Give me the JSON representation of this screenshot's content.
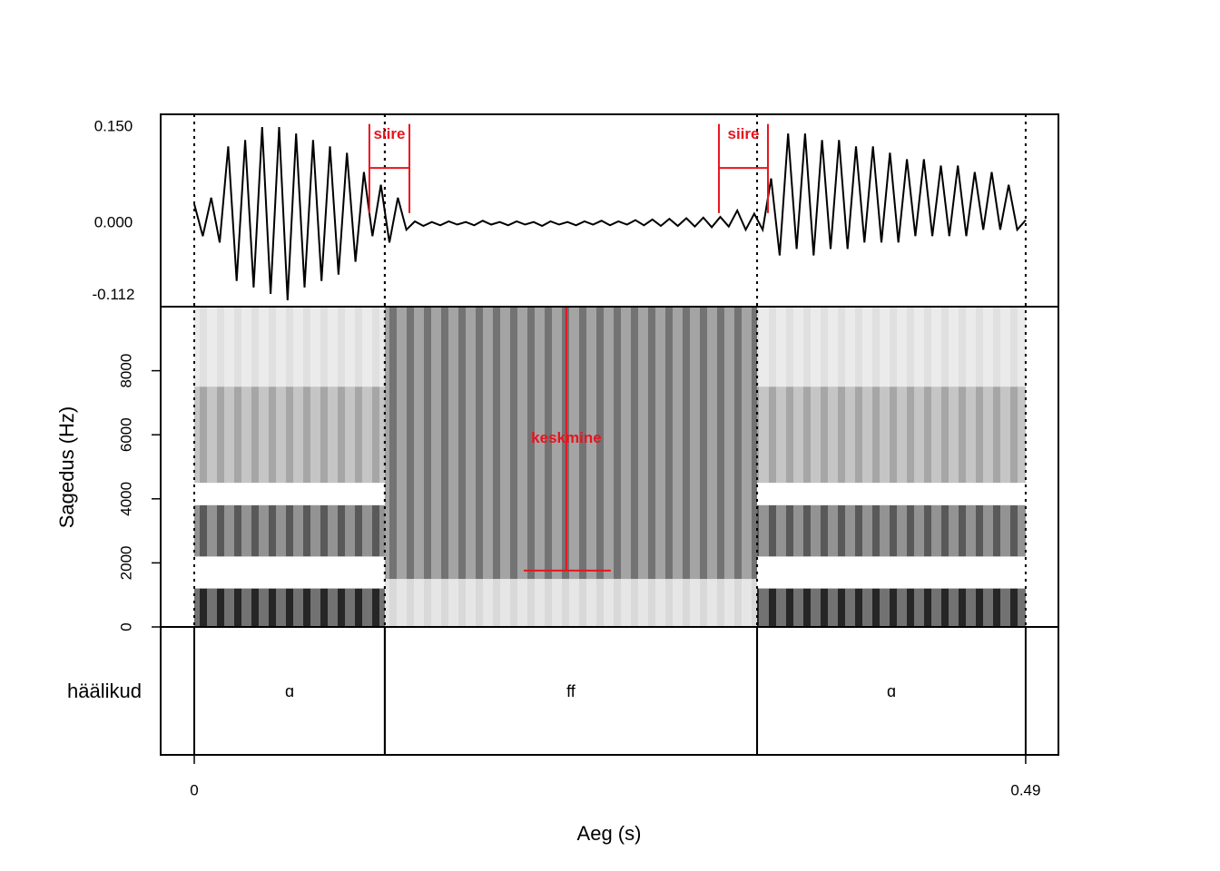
{
  "chart_data": {
    "type": "waveform-spectrogram",
    "xlabel": "Aeg (s)",
    "xlim": [
      -0.0198,
      0.5093
    ],
    "xticks": [
      0,
      0.49
    ],
    "waveform": {
      "ylim": [
        -0.13,
        0.17
      ],
      "yticks": [
        {
          "value": 0.15,
          "label": "0.150"
        },
        {
          "value": 0,
          "label": "0.000"
        },
        -0.112
      ],
      "color": "#000000",
      "x": [
        0,
        0.005,
        0.01,
        0.015,
        0.02,
        0.025,
        0.03,
        0.035,
        0.04,
        0.045,
        0.05,
        0.055,
        0.06,
        0.065,
        0.07,
        0.075,
        0.08,
        0.085,
        0.09,
        0.095,
        0.1,
        0.105,
        0.11,
        0.115,
        0.12,
        0.125,
        0.13,
        0.135,
        0.14,
        0.145,
        0.15,
        0.155,
        0.16,
        0.165,
        0.17,
        0.175,
        0.18,
        0.185,
        0.19,
        0.195,
        0.2,
        0.205,
        0.21,
        0.215,
        0.22,
        0.225,
        0.23,
        0.235,
        0.24,
        0.245,
        0.25,
        0.255,
        0.26,
        0.265,
        0.27,
        0.275,
        0.28,
        0.285,
        0.29,
        0.295,
        0.3,
        0.305,
        0.31,
        0.315,
        0.32,
        0.325,
        0.33,
        0.335,
        0.34,
        0.345,
        0.35,
        0.355,
        0.36,
        0.365,
        0.37,
        0.375,
        0.38,
        0.385,
        0.39,
        0.395,
        0.4,
        0.405,
        0.41,
        0.415,
        0.42,
        0.425,
        0.43,
        0.435,
        0.44,
        0.445,
        0.45,
        0.455,
        0.46,
        0.465,
        0.47,
        0.475,
        0.48,
        0.485,
        0.49
      ],
      "values": [
        0.03,
        -0.02,
        0.04,
        -0.03,
        0.12,
        -0.09,
        0.13,
        -0.1,
        0.15,
        -0.11,
        0.15,
        -0.12,
        0.14,
        -0.1,
        0.13,
        -0.09,
        0.12,
        -0.08,
        0.11,
        -0.06,
        0.08,
        -0.02,
        0.06,
        -0.03,
        0.04,
        -0.01,
        0.003,
        -0.004,
        0.002,
        -0.003,
        0.003,
        -0.002,
        0.002,
        -0.003,
        0.004,
        -0.002,
        0.002,
        -0.003,
        0.003,
        -0.002,
        0.002,
        -0.004,
        0.003,
        -0.002,
        0.002,
        -0.003,
        0.003,
        -0.002,
        0.004,
        -0.003,
        0.003,
        -0.002,
        0.005,
        -0.003,
        0.006,
        -0.004,
        0.007,
        -0.004,
        0.008,
        -0.005,
        0.009,
        -0.006,
        0.01,
        -0.005,
        0.02,
        -0.01,
        0.015,
        -0.01,
        0.07,
        -0.05,
        0.14,
        -0.04,
        0.14,
        -0.05,
        0.13,
        -0.04,
        0.13,
        -0.04,
        0.12,
        -0.03,
        0.12,
        -0.03,
        0.11,
        -0.03,
        0.1,
        -0.02,
        0.1,
        -0.02,
        0.09,
        -0.02,
        0.09,
        -0.02,
        0.08,
        -0.01,
        0.08,
        -0.01,
        0.06,
        -0.01,
        0.005
      ]
    },
    "spectrogram": {
      "ylabel": "Sagedus (Hz)",
      "ylim": [
        0,
        10000
      ],
      "yticks": [
        0,
        2000,
        4000,
        6000,
        8000
      ],
      "color": "#000000",
      "bands": [
        {
          "start": 0,
          "end": 0.1123,
          "low": 0,
          "high": 1200,
          "intensity": 0.85
        },
        {
          "start": 0,
          "end": 0.1123,
          "low": 2200,
          "high": 3800,
          "intensity": 0.65
        },
        {
          "start": 0,
          "end": 0.1123,
          "low": 4500,
          "high": 7500,
          "intensity": 0.35
        },
        {
          "start": 0,
          "end": 0.1123,
          "low": 7500,
          "high": 10000,
          "intensity": 0.12
        },
        {
          "start": 0.1123,
          "end": 0.3317,
          "low": 0,
          "high": 1500,
          "intensity": 0.15
        },
        {
          "start": 0.1123,
          "end": 0.3317,
          "low": 1500,
          "high": 10000,
          "intensity": 0.55
        },
        {
          "start": 0.3317,
          "end": 0.49,
          "low": 0,
          "high": 1200,
          "intensity": 0.85
        },
        {
          "start": 0.3317,
          "end": 0.49,
          "low": 2200,
          "high": 3800,
          "intensity": 0.65
        },
        {
          "start": 0.3317,
          "end": 0.49,
          "low": 4500,
          "high": 7500,
          "intensity": 0.35
        },
        {
          "start": 0.3317,
          "end": 0.49,
          "low": 7500,
          "high": 10000,
          "intensity": 0.12
        }
      ]
    },
    "tier": {
      "name": "häälikud",
      "segments": [
        {
          "start": 0,
          "end": 0.1123,
          "label": "ɑ"
        },
        {
          "start": 0.1123,
          "end": 0.3317,
          "label": "ff"
        },
        {
          "start": 0.3317,
          "end": 0.49,
          "label": "ɑ"
        }
      ]
    },
    "annotation_color": "#e8141e",
    "transitions": [
      {
        "text": "siire",
        "start": 0.1032,
        "end": 0.1268,
        "level": 0.0863,
        "top": 0.155,
        "bottom": 0.016
      },
      {
        "text": "siire",
        "start": 0.3092,
        "end": 0.3381,
        "level": 0.0863,
        "top": 0.155,
        "bottom": 0.016
      }
    ],
    "middle": {
      "text": "keskmine",
      "time": 0.2193,
      "top": 10000,
      "bottom": 1760,
      "start": 0.1942,
      "end": 0.2455
    }
  }
}
